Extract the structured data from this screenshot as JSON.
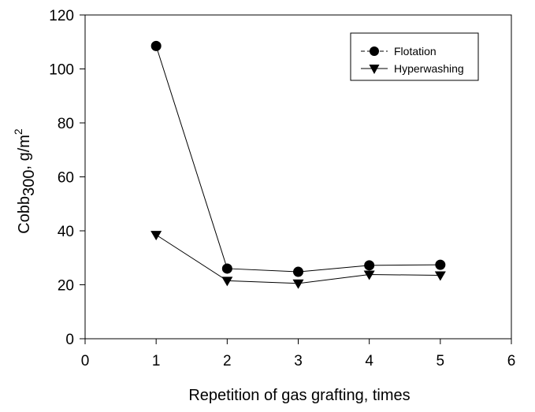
{
  "chart_data": {
    "type": "line",
    "x": [
      1,
      2,
      3,
      4,
      5
    ],
    "series": [
      {
        "name": "Flotation",
        "marker": "circle",
        "values": [
          108.5,
          26,
          24.8,
          27.2,
          27.4
        ]
      },
      {
        "name": "Hyperwashing",
        "marker": "triangle-down",
        "values": [
          38.5,
          21.5,
          20.5,
          23.8,
          23.5
        ]
      }
    ],
    "xlabel": "Repetition of gas grafting, times",
    "ylabel": {
      "base": "Cobb",
      "sub": "300",
      "unit": ", g/m",
      "sup": "2"
    },
    "xlim": [
      0,
      6
    ],
    "ylim": [
      0,
      120
    ],
    "xticks": [
      0,
      1,
      2,
      3,
      4,
      5,
      6
    ],
    "yticks": [
      0,
      20,
      40,
      60,
      80,
      100,
      120
    ],
    "grid": false,
    "legend_position": "top-right",
    "color": "#000000"
  }
}
